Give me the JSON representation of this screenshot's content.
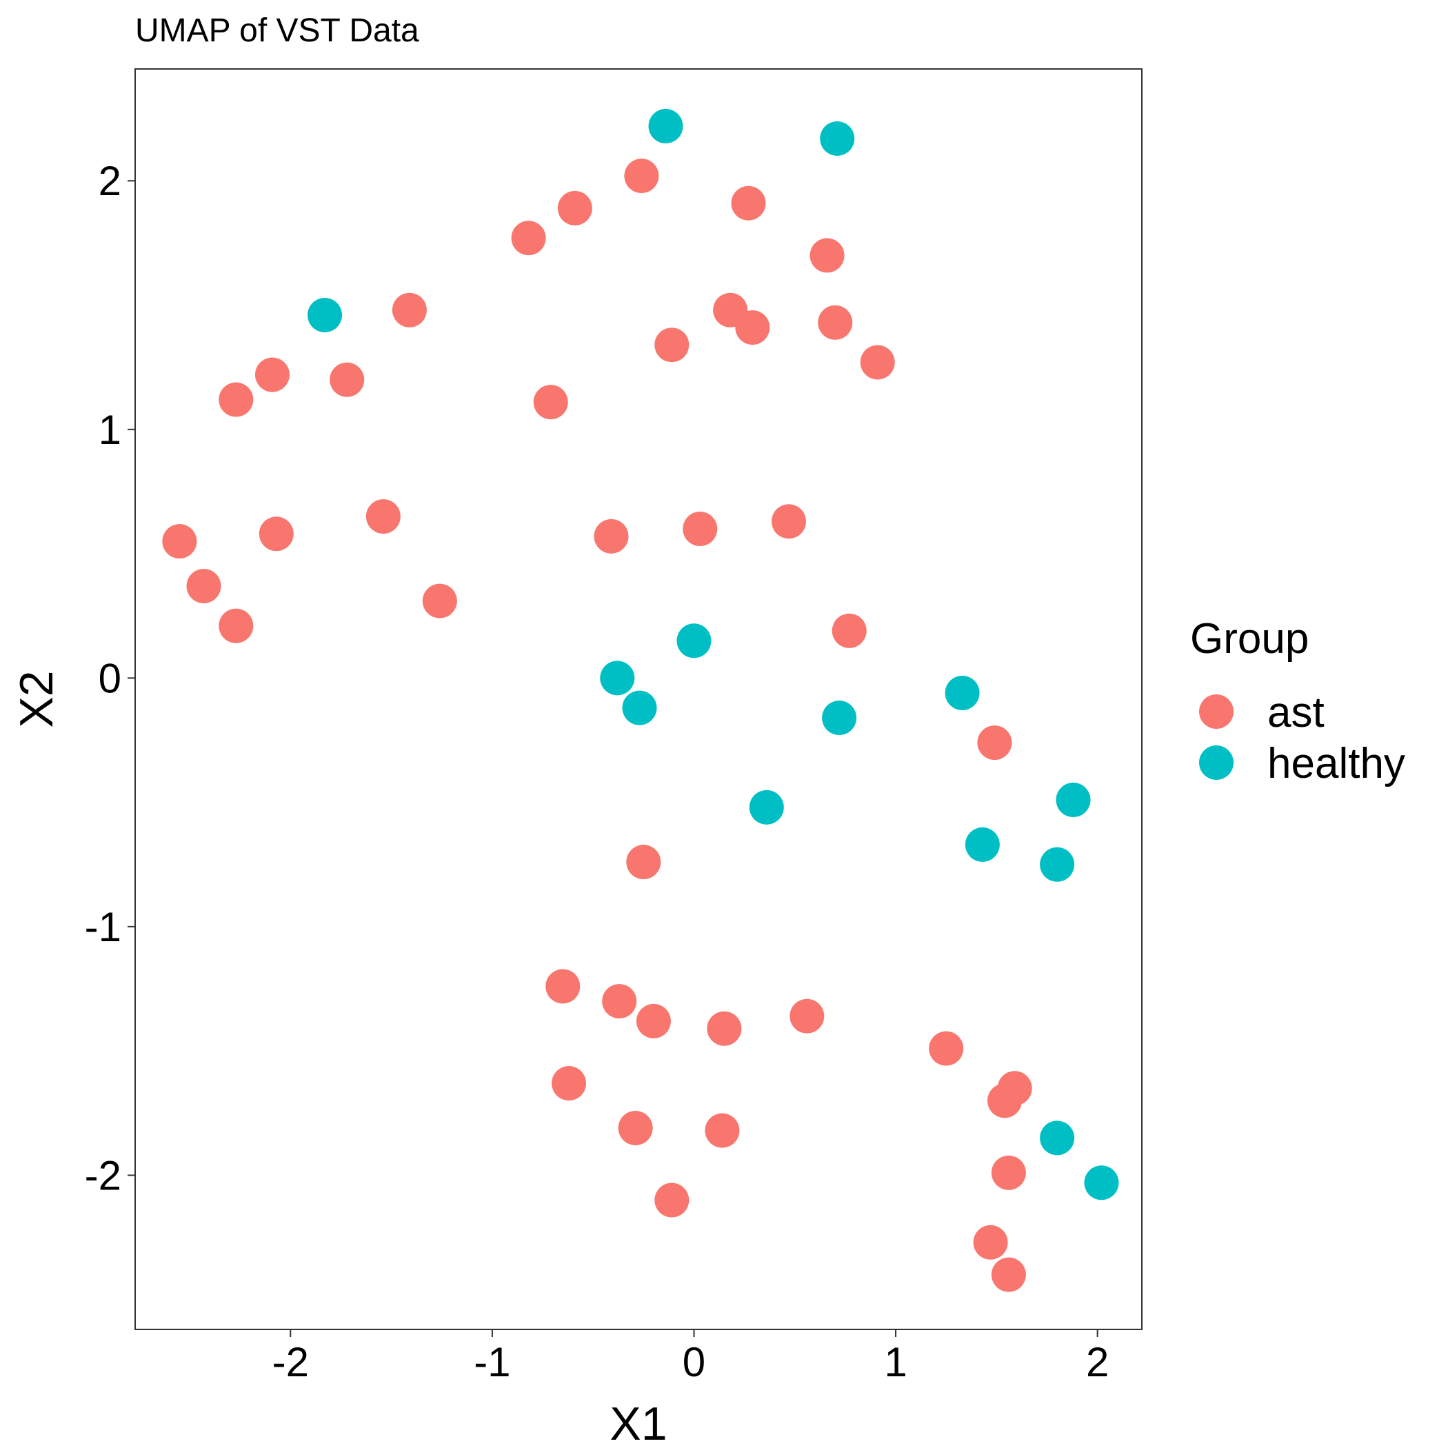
{
  "chart_data": {
    "type": "scatter",
    "title": "UMAP of VST Data",
    "xlabel": "X1",
    "ylabel": "X2",
    "xlim": [
      -2.77,
      2.22
    ],
    "ylim": [
      -2.62,
      2.45
    ],
    "xticks": [
      -2,
      -1,
      0,
      1,
      2
    ],
    "yticks": [
      -2,
      -1,
      0,
      1,
      2
    ],
    "xtick_labels": [
      "-2",
      "-1",
      "0",
      "1",
      "2"
    ],
    "ytick_labels": [
      "-2",
      "-1",
      "0",
      "1",
      "2"
    ],
    "grid": false,
    "legend": {
      "title": "Group",
      "position": "right"
    },
    "series": [
      {
        "name": "ast",
        "color": "#F8766D",
        "points": [
          {
            "x": -0.26,
            "y": 2.02
          },
          {
            "x": -0.59,
            "y": 1.89
          },
          {
            "x": -0.82,
            "y": 1.77
          },
          {
            "x": 0.27,
            "y": 1.91
          },
          {
            "x": 0.66,
            "y": 1.7
          },
          {
            "x": -1.41,
            "y": 1.48
          },
          {
            "x": 0.18,
            "y": 1.48
          },
          {
            "x": 0.29,
            "y": 1.41
          },
          {
            "x": 0.7,
            "y": 1.43
          },
          {
            "x": -0.11,
            "y": 1.34
          },
          {
            "x": 0.91,
            "y": 1.27
          },
          {
            "x": -2.09,
            "y": 1.22
          },
          {
            "x": -1.72,
            "y": 1.2
          },
          {
            "x": -2.27,
            "y": 1.12
          },
          {
            "x": -0.71,
            "y": 1.11
          },
          {
            "x": -1.54,
            "y": 0.65
          },
          {
            "x": 0.47,
            "y": 0.63
          },
          {
            "x": 0.03,
            "y": 0.6
          },
          {
            "x": -2.07,
            "y": 0.58
          },
          {
            "x": -0.41,
            "y": 0.57
          },
          {
            "x": -2.55,
            "y": 0.55
          },
          {
            "x": -2.43,
            "y": 0.37
          },
          {
            "x": -1.26,
            "y": 0.31
          },
          {
            "x": -2.27,
            "y": 0.21
          },
          {
            "x": 0.77,
            "y": 0.19
          },
          {
            "x": 1.49,
            "y": -0.26
          },
          {
            "x": -0.25,
            "y": -0.74
          },
          {
            "x": -0.65,
            "y": -1.24
          },
          {
            "x": -0.37,
            "y": -1.3
          },
          {
            "x": -0.2,
            "y": -1.38
          },
          {
            "x": 0.15,
            "y": -1.41
          },
          {
            "x": 0.56,
            "y": -1.36
          },
          {
            "x": 1.25,
            "y": -1.49
          },
          {
            "x": 1.59,
            "y": -1.65
          },
          {
            "x": 1.54,
            "y": -1.7
          },
          {
            "x": -0.62,
            "y": -1.63
          },
          {
            "x": -0.29,
            "y": -1.81
          },
          {
            "x": 0.14,
            "y": -1.82
          },
          {
            "x": 1.56,
            "y": -1.99
          },
          {
            "x": -0.11,
            "y": -2.1
          },
          {
            "x": 1.47,
            "y": -2.27
          },
          {
            "x": 1.56,
            "y": -2.4
          }
        ]
      },
      {
        "name": "healthy",
        "color": "#00BFC4",
        "points": [
          {
            "x": -0.14,
            "y": 2.22
          },
          {
            "x": 0.71,
            "y": 2.17
          },
          {
            "x": -1.83,
            "y": 1.46
          },
          {
            "x": 0.0,
            "y": 0.15
          },
          {
            "x": -0.38,
            "y": 0.0
          },
          {
            "x": -0.27,
            "y": -0.12
          },
          {
            "x": 0.72,
            "y": -0.16
          },
          {
            "x": 1.33,
            "y": -0.06
          },
          {
            "x": 0.36,
            "y": -0.52
          },
          {
            "x": 1.88,
            "y": -0.49
          },
          {
            "x": 1.43,
            "y": -0.67
          },
          {
            "x": 1.8,
            "y": -0.75
          },
          {
            "x": 1.8,
            "y": -1.85
          },
          {
            "x": 2.02,
            "y": -2.03
          }
        ]
      }
    ]
  }
}
